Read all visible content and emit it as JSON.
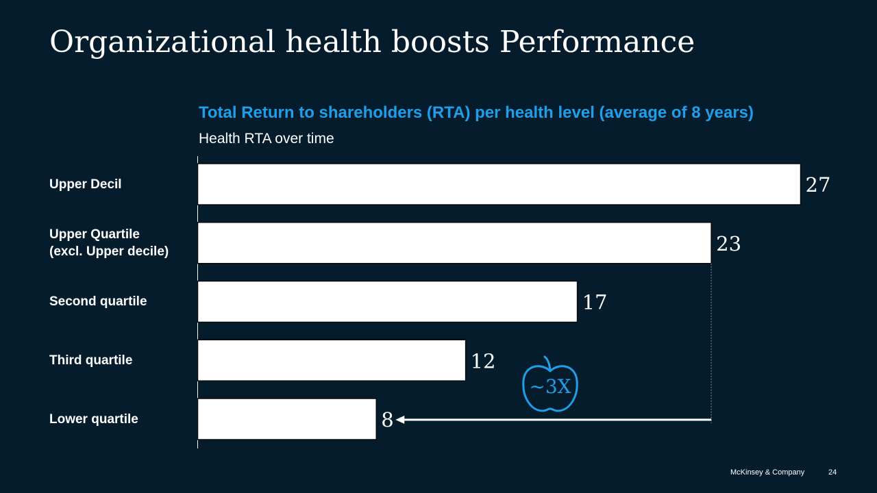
{
  "slide": {
    "title": "Organizational health boosts Performance",
    "footer_company": "McKinsey & Company",
    "page_number": "24"
  },
  "chart_data": {
    "type": "bar",
    "orientation": "horizontal",
    "title": "Total Return to shareholders (RTA) per health level (average of 8 years)",
    "subtitle": "Health RTA over time",
    "categories": [
      [
        "Upper Decil"
      ],
      [
        "Upper Quartile",
        "(excl. Upper decile)"
      ],
      [
        "Second quartile"
      ],
      [
        "Third quartile"
      ],
      [
        "Lower quartile"
      ]
    ],
    "values": [
      27,
      23,
      17,
      12,
      8
    ],
    "data_labels": [
      "27",
      "23",
      "17",
      "12",
      "8"
    ],
    "xlim": [
      0,
      27
    ],
    "grid": false,
    "legend": "none",
    "annotation": {
      "text": "~3X",
      "icon": "apple-icon",
      "from_category": "Upper Quartile (excl. Upper decile)",
      "to_category": "Lower quartile"
    },
    "colors": {
      "background": "#051c2c",
      "bar_fill": "#ffffff",
      "title": "#1f9fea",
      "annotation": "#1f9fea",
      "text": "#ffffff"
    }
  }
}
